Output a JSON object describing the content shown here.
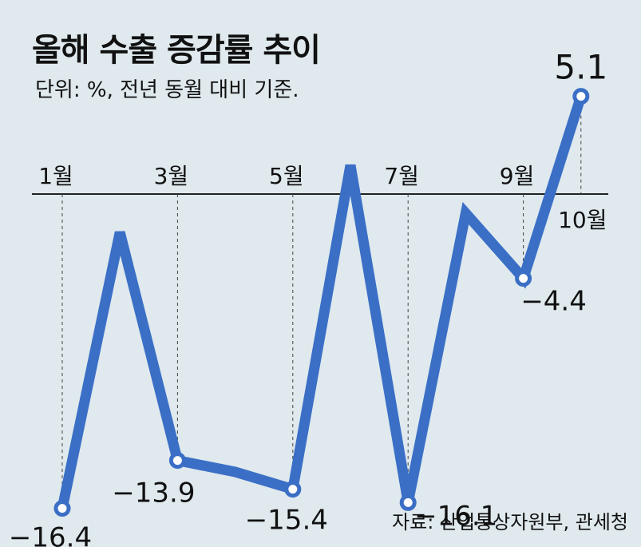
{
  "chart_data": {
    "type": "line",
    "title": "올해 수출 증감률 추이",
    "subtitle": "단위: %, 전년 동월 대비 기준.",
    "source": "자료: 산업통상자원부, 관세청",
    "x": [
      1,
      2,
      3,
      4,
      5,
      6,
      7,
      8,
      9,
      10
    ],
    "values": [
      -16.4,
      -2.0,
      -13.9,
      -14.5,
      -15.4,
      1.5,
      -16.1,
      -1.0,
      -4.4,
      5.1
    ],
    "tick_labels": [
      "1월",
      "3월",
      "5월",
      "7월",
      "9월",
      "10월"
    ],
    "tick_months": [
      1,
      3,
      5,
      7,
      9,
      10
    ],
    "point_labels": [
      {
        "x": 1,
        "text": "−16.4"
      },
      {
        "x": 3,
        "text": "−13.9"
      },
      {
        "x": 5,
        "text": "−15.4"
      },
      {
        "x": 7,
        "text": "−16.1"
      },
      {
        "x": 9,
        "text": "−4.4"
      },
      {
        "x": 10,
        "text": "5.1"
      }
    ],
    "line_color": "#3b6fc6",
    "background": "#dfe9ee"
  }
}
